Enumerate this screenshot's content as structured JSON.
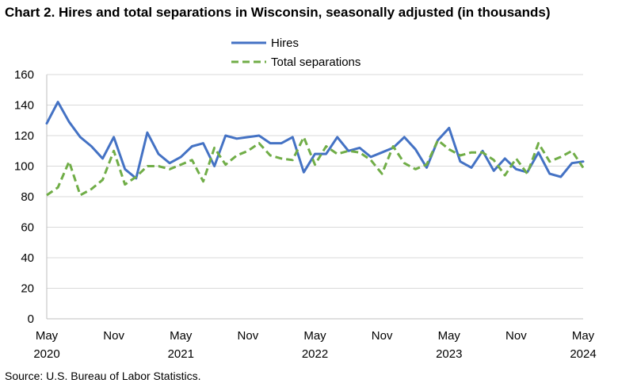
{
  "chart_title": "Chart 2. Hires and total separations in Wisconsin, seasonally adjusted (in thousands)",
  "source": "Source: U.S. Bureau of Labor Statistics.",
  "colors": {
    "hires": "#4472C4",
    "separations": "#70AD47",
    "grid": "#d9d9d9",
    "axis": "#bfbfbf"
  },
  "chart_data": {
    "type": "line",
    "title": "Chart 2. Hires and total separations in Wisconsin, seasonally adjusted (in thousands)",
    "xlabel": "",
    "ylabel": "",
    "ylim": [
      0,
      160
    ],
    "yticks": [
      0,
      20,
      40,
      60,
      80,
      100,
      120,
      140,
      160
    ],
    "grid": true,
    "legend_position": "top-center",
    "x": [
      "May 2020",
      "Jun 2020",
      "Jul 2020",
      "Aug 2020",
      "Sep 2020",
      "Oct 2020",
      "Nov 2020",
      "Dec 2020",
      "Jan 2021",
      "Feb 2021",
      "Mar 2021",
      "Apr 2021",
      "May 2021",
      "Jun 2021",
      "Jul 2021",
      "Aug 2021",
      "Sep 2021",
      "Oct 2021",
      "Nov 2021",
      "Dec 2021",
      "Jan 2022",
      "Feb 2022",
      "Mar 2022",
      "Apr 2022",
      "May 2022",
      "Jun 2022",
      "Jul 2022",
      "Aug 2022",
      "Sep 2022",
      "Oct 2022",
      "Nov 2022",
      "Dec 2022",
      "Jan 2023",
      "Feb 2023",
      "Mar 2023",
      "Apr 2023",
      "May 2023",
      "Jun 2023",
      "Jul 2023",
      "Aug 2023",
      "Sep 2023",
      "Oct 2023",
      "Nov 2023",
      "Dec 2023",
      "Jan 2024",
      "Feb 2024",
      "Mar 2024",
      "Apr 2024",
      "May 2024"
    ],
    "x_tick_labels": [
      {
        "index": 0,
        "month": "May",
        "year": "2020"
      },
      {
        "index": 6,
        "month": "Nov",
        "year": ""
      },
      {
        "index": 12,
        "month": "May",
        "year": "2021"
      },
      {
        "index": 18,
        "month": "Nov",
        "year": ""
      },
      {
        "index": 24,
        "month": "May",
        "year": "2022"
      },
      {
        "index": 30,
        "month": "Nov",
        "year": ""
      },
      {
        "index": 36,
        "month": "May",
        "year": "2023"
      },
      {
        "index": 42,
        "month": "Nov",
        "year": ""
      },
      {
        "index": 48,
        "month": "May",
        "year": "2024"
      }
    ],
    "series": [
      {
        "name": "Hires",
        "style": "solid",
        "values": [
          128,
          142,
          129,
          119,
          113,
          105,
          119,
          98,
          92,
          122,
          108,
          102,
          106,
          113,
          115,
          100,
          120,
          118,
          119,
          120,
          115,
          115,
          119,
          96,
          108,
          108,
          119,
          110,
          112,
          106,
          109,
          112,
          119,
          111,
          99,
          117,
          125,
          103,
          99,
          110,
          97,
          105,
          98,
          96,
          109,
          95,
          93,
          102,
          103
        ]
      },
      {
        "name": "Total separations",
        "style": "dashed",
        "values": [
          81,
          86,
          103,
          81,
          85,
          91,
          110,
          88,
          93,
          100,
          100,
          98,
          101,
          104,
          90,
          112,
          101,
          107,
          110,
          115,
          107,
          105,
          104,
          119,
          101,
          113,
          108,
          110,
          109,
          104,
          95,
          113,
          102,
          98,
          101,
          117,
          111,
          107,
          109,
          109,
          104,
          94,
          105,
          95,
          115,
          103,
          106,
          110,
          99
        ]
      }
    ]
  }
}
